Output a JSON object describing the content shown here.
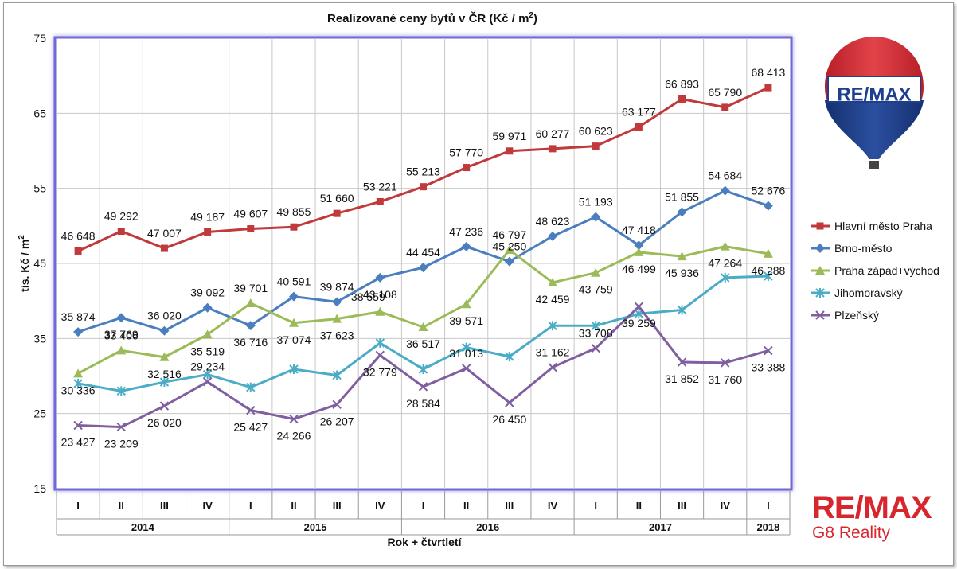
{
  "chart_data": {
    "type": "line",
    "title": "Realizované ceny bytů v ČR (Kč / m",
    "title_sup": "2",
    "title_end": ")",
    "ylabel": "tis. Kč / m",
    "ylabel_sup": "2",
    "xlabel": "Rok + čtvrtletí",
    "ylim": [
      15,
      75
    ],
    "yticks": [
      "15",
      "25",
      "35",
      "45",
      "55",
      "65",
      "75"
    ],
    "yticks_values": [
      15,
      25,
      35,
      45,
      55,
      65,
      75
    ],
    "categories": [
      "I",
      "II",
      "III",
      "IV",
      "I",
      "II",
      "III",
      "IV",
      "I",
      "II",
      "III",
      "IV",
      "I",
      "II",
      "III",
      "IV",
      "I"
    ],
    "years": [
      {
        "label": "2014",
        "span": 4
      },
      {
        "label": "2015",
        "span": 4
      },
      {
        "label": "2016",
        "span": 4
      },
      {
        "label": "2017",
        "span": 4
      },
      {
        "label": "2018",
        "span": 1
      }
    ],
    "legend_position": "right",
    "grid": true,
    "series": [
      {
        "name": "Hlavní město Praha",
        "color": "#c0393b",
        "marker": "square",
        "values": [
          46.648,
          49.292,
          47.007,
          49.187,
          49.607,
          49.855,
          51.66,
          53.221,
          55.213,
          57.77,
          59.971,
          60.277,
          60.623,
          63.177,
          66.893,
          65.79,
          68.413
        ],
        "labels": [
          "46 648",
          "49 292",
          "47 007",
          "49 187",
          "49 607",
          "49 855",
          "51 660",
          "53 221",
          "55 213",
          "57 770",
          "59 971",
          "60 277",
          "60 623",
          "63 177",
          "66 893",
          "65 790",
          "68 413"
        ]
      },
      {
        "name": "Brno-město",
        "color": "#4a7ebf",
        "marker": "diamond",
        "values": [
          35.874,
          37.769,
          36.02,
          39.092,
          36.716,
          40.591,
          39.874,
          43.108,
          44.454,
          47.236,
          45.25,
          48.623,
          51.193,
          47.418,
          51.855,
          54.684,
          52.676
        ],
        "labels": [
          "35 874",
          "37 769",
          "36 020",
          "39 092",
          "36 716",
          "40 591",
          "39 874",
          "43 108",
          "44 454",
          "47 236",
          "45 250",
          "48 623",
          "51 193",
          "47 418",
          "51 855",
          "54 684",
          "52 676"
        ]
      },
      {
        "name": "Praha západ+východ",
        "color": "#9bbb59",
        "marker": "triangle",
        "values": [
          30.336,
          33.406,
          32.516,
          35.519,
          39.701,
          37.074,
          37.623,
          38.559,
          36.517,
          39.571,
          46.797,
          42.459,
          43.759,
          46.499,
          45.936,
          47.264,
          46.288
        ],
        "labels": [
          "30 336",
          "33 406",
          "32 516",
          "35 519",
          "39 701",
          "37 074",
          "37 623",
          "38 559",
          "36 517",
          "39 571",
          "46 797",
          "42 459",
          "43 759",
          "46 499",
          "45 936",
          "47 264",
          "46 288"
        ]
      },
      {
        "name": "Jihomoravský",
        "color": "#4bacc6",
        "marker": "star",
        "values": [
          29.0,
          28.0,
          29.2,
          30.2,
          28.5,
          30.9,
          30.1,
          34.4,
          30.9,
          33.8,
          32.6,
          36.7,
          36.7,
          38.3,
          38.8,
          43.1,
          43.3
        ]
      },
      {
        "name": "Plzeňský",
        "color": "#7f5fa0",
        "marker": "x",
        "values": [
          23.427,
          23.209,
          26.02,
          29.234,
          25.427,
          24.266,
          26.207,
          32.779,
          28.584,
          31.013,
          26.45,
          31.162,
          33.708,
          39.259,
          31.852,
          31.76,
          33.388
        ],
        "labels": [
          "23 427",
          "23 209",
          "26 020",
          "29 234",
          "25 427",
          "24 266",
          "26 207",
          "32 779",
          "28 584",
          "31 013",
          "26 450",
          "31 162",
          "33 708",
          "39 259",
          "31 852",
          "31 760",
          "33 388"
        ]
      }
    ]
  },
  "balloon_logo": {
    "text": "RE/MAX",
    "colors": [
      "#d8262f",
      "#ffffff",
      "#1e3f8f"
    ]
  },
  "brand": {
    "line1": "RE/MAX",
    "line2": "G8 Reality",
    "color": "#d8262f"
  }
}
